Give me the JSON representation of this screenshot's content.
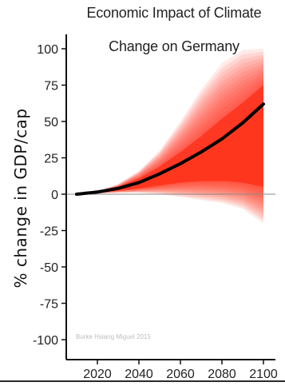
{
  "chart_data": {
    "type": "area",
    "title_lines": [
      "Economic Impact of Climate",
      "Change on Germany"
    ],
    "xlabel": "",
    "ylabel": "% change in GDP/cap",
    "credit": "Burke Hsiang Miguel 2015",
    "xlim": [
      2010,
      2100
    ],
    "ylim": [
      -105,
      105
    ],
    "x_ticks": [
      2020,
      2040,
      2060,
      2080,
      2100
    ],
    "y_ticks": [
      100,
      75,
      50,
      25,
      0,
      -25,
      -50,
      -75,
      -100
    ],
    "y_tick_labels": [
      "100",
      "75",
      "50",
      "25",
      "0",
      "-25",
      "-50",
      "-75",
      "-100"
    ],
    "zero_line": true,
    "grid": false,
    "series": [
      {
        "kind": "median",
        "color": "#000000",
        "x": [
          2010,
          2020,
          2030,
          2040,
          2050,
          2060,
          2070,
          2080,
          2090,
          2100
        ],
        "y": [
          0,
          1.5,
          4,
          8,
          14,
          21,
          29,
          38,
          49,
          62
        ]
      },
      {
        "kind": "uncertainty_band",
        "color": "#ff1a00",
        "x": [
          2010,
          2020,
          2030,
          2040,
          2050,
          2060,
          2070,
          2080,
          2090,
          2100
        ],
        "upper_outer": [
          0,
          2,
          7,
          16,
          30,
          50,
          72,
          90,
          99,
          100
        ],
        "lower_outer": [
          0,
          0.5,
          1,
          1,
          0,
          -2,
          -4,
          -6,
          -10,
          -20
        ],
        "upper_inner": [
          0,
          1.8,
          5,
          11,
          19,
          29,
          40,
          52,
          63,
          75
        ],
        "lower_inner": [
          0,
          1,
          2.5,
          4,
          6,
          8,
          9,
          9,
          8,
          5
        ]
      }
    ]
  }
}
